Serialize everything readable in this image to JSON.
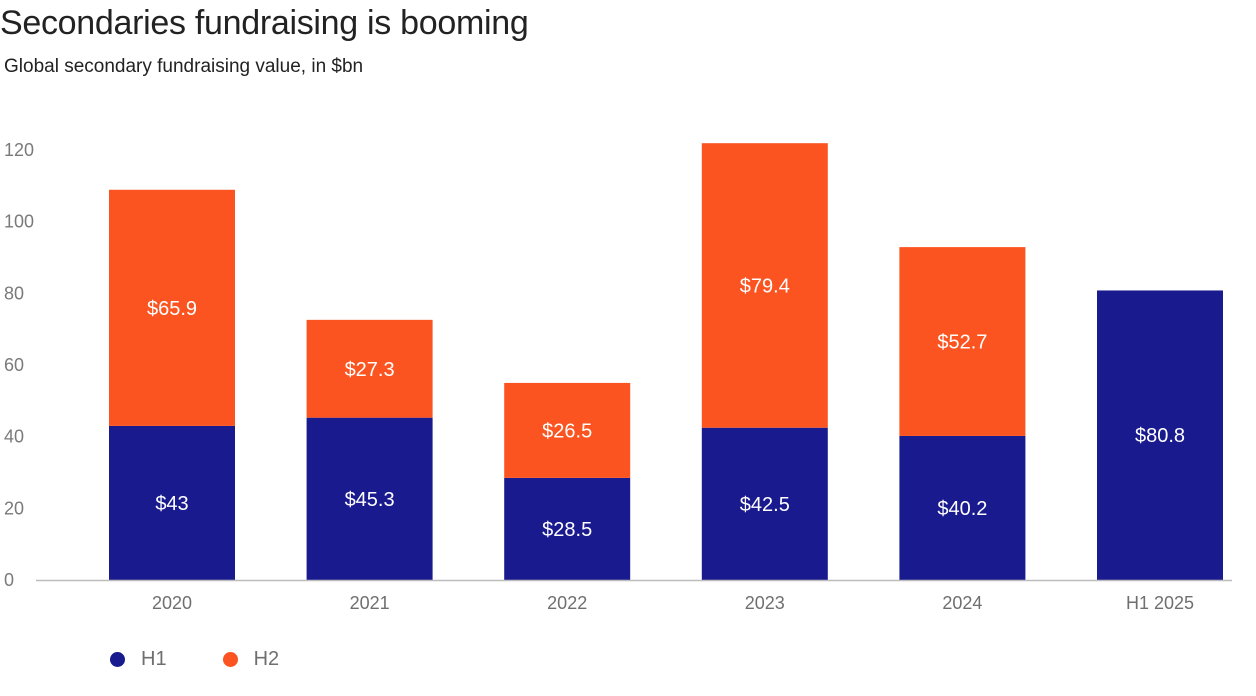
{
  "title": "Secondaries fundraising is booming",
  "subtitle": "Global secondary fundraising value, in $bn",
  "colors": {
    "h1": "#1a1a8f",
    "h2": "#fb5420",
    "axis": "#bdbdbd"
  },
  "legend": [
    {
      "label": "H1",
      "color": "#1a1a8f"
    },
    {
      "label": "H2",
      "color": "#fb5420"
    }
  ],
  "chart_data": {
    "type": "bar",
    "stacked": true,
    "title": "Secondaries fundraising is booming",
    "subtitle": "Global secondary fundraising value, in $bn",
    "categories": [
      "2020",
      "2021",
      "2022",
      "2023",
      "2024",
      "H1 2025"
    ],
    "series": [
      {
        "name": "H1",
        "values": [
          43,
          45.3,
          28.5,
          42.5,
          40.2,
          80.8
        ],
        "labels": [
          "$43",
          "$45.3",
          "$28.5",
          "$42.5",
          "$40.2",
          "$80.8"
        ]
      },
      {
        "name": "H2",
        "values": [
          65.9,
          27.3,
          26.5,
          79.4,
          52.7,
          null
        ],
        "labels": [
          "$65.9",
          "$27.3",
          "$26.5",
          "$79.4",
          "$52.7",
          ""
        ]
      }
    ],
    "yticks": [
      0,
      20,
      40,
      60,
      80,
      100,
      120
    ],
    "ylim": [
      0,
      120
    ],
    "xlabel": "",
    "ylabel": "",
    "grid": false,
    "legend_position": "bottom-left"
  }
}
